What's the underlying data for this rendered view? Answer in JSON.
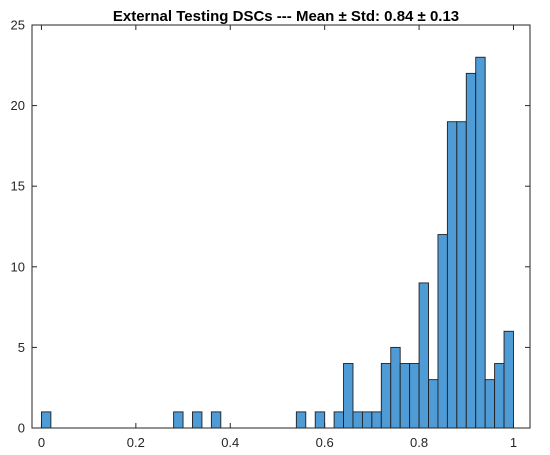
{
  "chart_data": {
    "type": "bar",
    "title": "External Testing DSCs --- Mean ± Std: 0.84 ± 0.13",
    "xlabel": "",
    "ylabel": "",
    "xlim": [
      -0.02,
      1.035
    ],
    "ylim": [
      0,
      25
    ],
    "bin_width": 0.02,
    "x_ticks": [
      0,
      0.2,
      0.4,
      0.6,
      0.8,
      1
    ],
    "x_tick_labels": [
      "0",
      "0.2",
      "0.4",
      "0.6",
      "0.8",
      "1"
    ],
    "y_ticks": [
      0,
      5,
      10,
      15,
      20,
      25
    ],
    "y_tick_labels": [
      "0",
      "5",
      "10",
      "15",
      "20",
      "25"
    ],
    "grid": false,
    "bar_color": "#4f9bd6",
    "bins": [
      {
        "x": 0.0,
        "count": 1
      },
      {
        "x": 0.28,
        "count": 1
      },
      {
        "x": 0.32,
        "count": 1
      },
      {
        "x": 0.36,
        "count": 1
      },
      {
        "x": 0.54,
        "count": 1
      },
      {
        "x": 0.58,
        "count": 1
      },
      {
        "x": 0.62,
        "count": 1
      },
      {
        "x": 0.64,
        "count": 4
      },
      {
        "x": 0.66,
        "count": 1
      },
      {
        "x": 0.68,
        "count": 1
      },
      {
        "x": 0.7,
        "count": 1
      },
      {
        "x": 0.72,
        "count": 4
      },
      {
        "x": 0.74,
        "count": 5
      },
      {
        "x": 0.76,
        "count": 4
      },
      {
        "x": 0.78,
        "count": 4
      },
      {
        "x": 0.8,
        "count": 9
      },
      {
        "x": 0.82,
        "count": 3
      },
      {
        "x": 0.84,
        "count": 12
      },
      {
        "x": 0.86,
        "count": 19
      },
      {
        "x": 0.88,
        "count": 19
      },
      {
        "x": 0.9,
        "count": 22
      },
      {
        "x": 0.92,
        "count": 23
      },
      {
        "x": 0.94,
        "count": 3
      },
      {
        "x": 0.96,
        "count": 4
      },
      {
        "x": 0.98,
        "count": 6
      }
    ]
  }
}
